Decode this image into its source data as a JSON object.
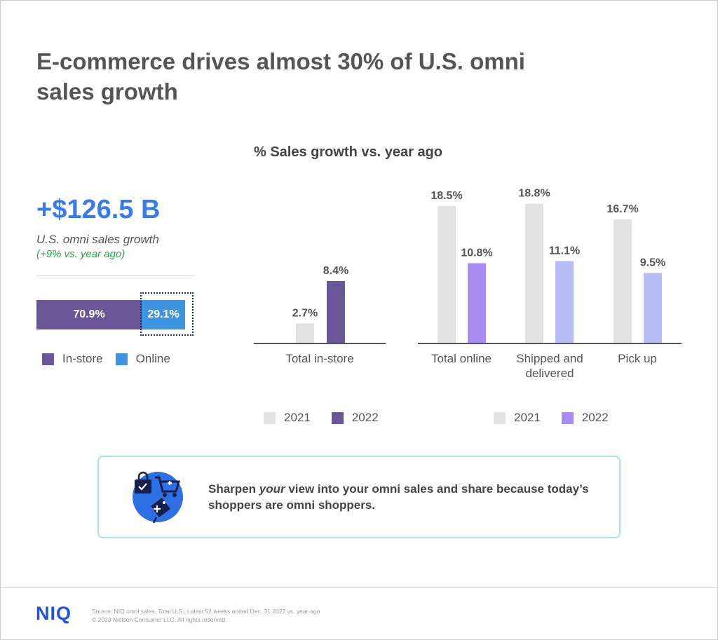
{
  "title_line1": "E-commerce drives almost 30% of U.S. omni",
  "title_line2": "sales growth",
  "subtitle": "% Sales growth vs. year ago",
  "kpi": {
    "value": "+$126.5 B",
    "label": "U.S. omni sales growth",
    "sub": "(+9% vs. year ago)"
  },
  "split": {
    "segments": [
      {
        "name": "In-store",
        "value": 70.9,
        "label": "70.9%",
        "color": "#6a5596"
      },
      {
        "name": "Online",
        "value": 29.1,
        "label": "29.1%",
        "color": "#3f94e0"
      }
    ]
  },
  "legends": {
    "instore": {
      "y2021": "2021",
      "y2022": "2022",
      "color2021": "#e2e2e2",
      "color2022": "#6a5596"
    },
    "online": {
      "y2021": "2021",
      "y2022": "2022",
      "color2021": "#e2e2e2",
      "color2022": "#a78bf0"
    }
  },
  "chart_data": [
    {
      "type": "bar",
      "categories": [
        "Total in-store"
      ],
      "series": [
        {
          "name": "2021",
          "values": [
            2.7
          ],
          "labels": [
            "2.7%"
          ],
          "color": "#e2e2e2"
        },
        {
          "name": "2022",
          "values": [
            8.4
          ],
          "labels": [
            "8.4%"
          ],
          "color": "#6a5596"
        }
      ]
    },
    {
      "type": "bar",
      "categories": [
        "Total online",
        "Shipped and delivered",
        "Pick up"
      ],
      "series": [
        {
          "name": "2021",
          "values": [
            18.5,
            18.8,
            16.7
          ],
          "labels": [
            "18.5%",
            "18.8%",
            "16.7%"
          ],
          "color": "#e2e2e2"
        },
        {
          "name": "2022",
          "values": [
            10.8,
            11.1,
            9.5
          ],
          "labels": [
            "10.8%",
            "11.1%",
            "9.5%"
          ],
          "colors": [
            "#a78bf0",
            "#b7bdf5",
            "#b7bdf5"
          ]
        }
      ]
    }
  ],
  "callout": {
    "text_pre": "Sharpen ",
    "text_em": "your",
    "text_post": " view into your omni sales and share because today’s shoppers are omni shoppers."
  },
  "footer": {
    "logo": "NIQ",
    "source_line1": "Source: NIQ omni sales, Total U.S., Latest 52 weeks ended Dec. 31 2022 vs. year-ago",
    "source_line2": "© 2023 Nielsen Consumer LLC. All rights reserved."
  }
}
